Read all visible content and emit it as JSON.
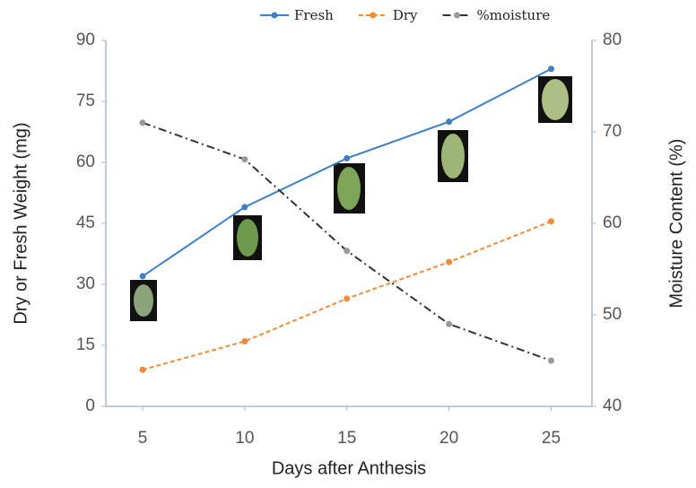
{
  "chart_data": {
    "type": "line",
    "x_label": "Days after Anthesis",
    "y_label": "Dry or Fresh Weight (mg)",
    "y2_label": "Moisture Content (%)",
    "x": [
      5,
      10,
      15,
      20,
      25
    ],
    "xlim": [
      3.2,
      27
    ],
    "xticks": [
      5,
      10,
      15,
      20,
      25
    ],
    "ylim": [
      0,
      90
    ],
    "yticks": [
      0,
      15,
      30,
      45,
      60,
      75,
      90
    ],
    "y2lim": [
      40,
      80
    ],
    "y2ticks": [
      40,
      50,
      60,
      70,
      80
    ],
    "grid": false,
    "legend": "top",
    "series": [
      {
        "name": "Fresh",
        "color": "#3f7fc4",
        "dash": "solid",
        "values": [
          32,
          49,
          61,
          70,
          83
        ]
      },
      {
        "name": "Dry",
        "color": "#f08c3a",
        "dash": "dashed",
        "values": [
          9,
          16,
          26.5,
          35.5,
          45.5
        ]
      },
      {
        "name": "%moisture",
        "color": "#333333",
        "marker_color": "#9a9a9a",
        "dash": "dashdot",
        "axis": "y2",
        "values": [
          71,
          67,
          57,
          49,
          45
        ]
      }
    ]
  }
}
